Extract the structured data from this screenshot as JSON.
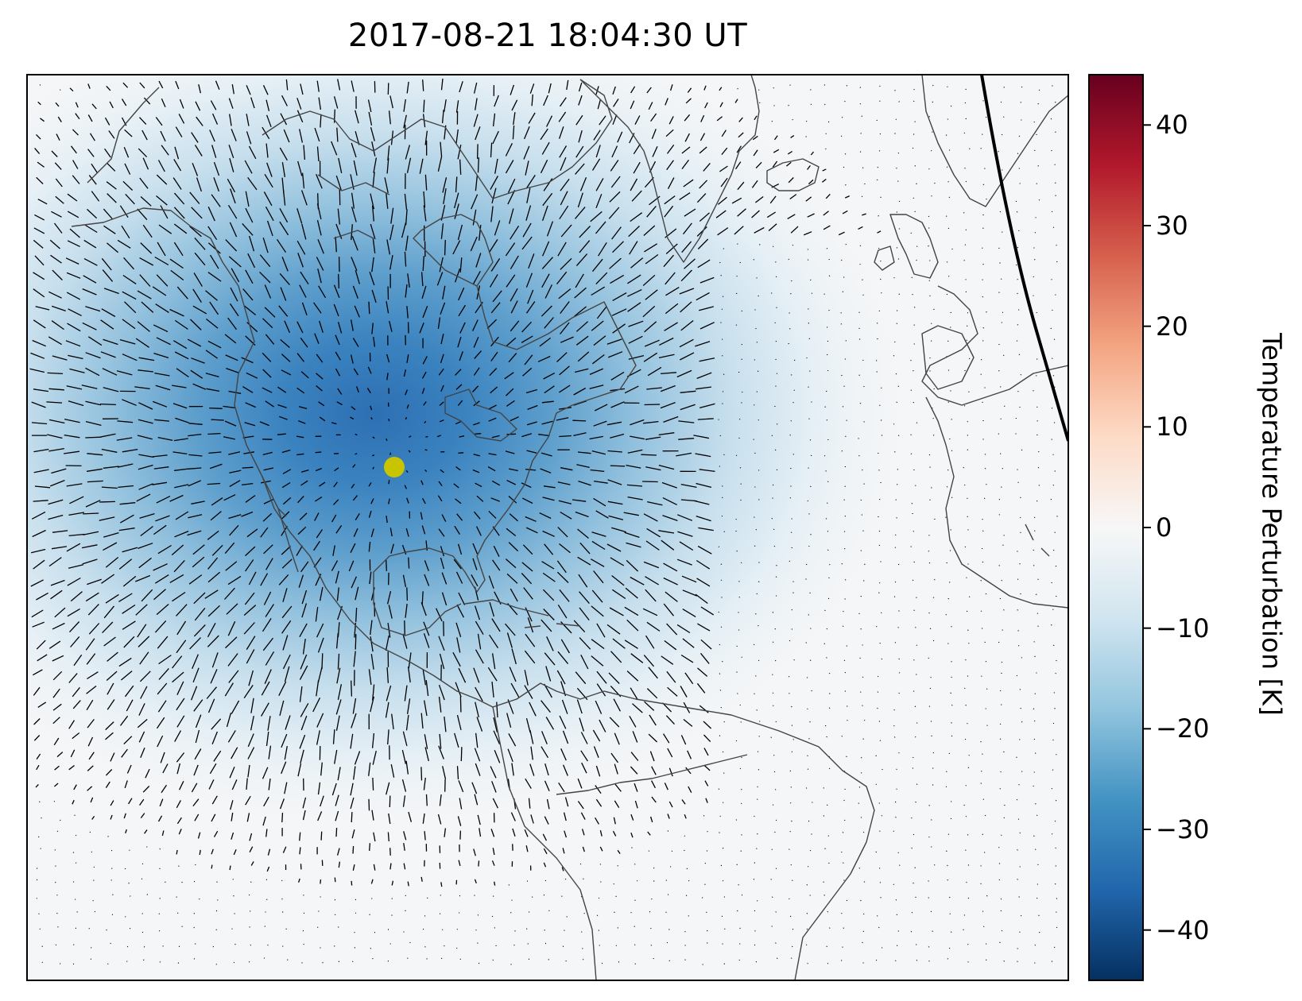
{
  "title": "2017-08-21 18:04:30 UT",
  "colorbar": {
    "label": "Temperature Perturbation [K]",
    "colormap": "RdBu_r",
    "range": [
      -45,
      45
    ],
    "ticks": [
      {
        "value": 40,
        "label": "40"
      },
      {
        "value": 30,
        "label": "30"
      },
      {
        "value": 20,
        "label": "20"
      },
      {
        "value": 10,
        "label": "10"
      },
      {
        "value": 0,
        "label": "0"
      },
      {
        "value": -10,
        "label": "−10"
      },
      {
        "value": -20,
        "label": "−20"
      },
      {
        "value": -30,
        "label": "−30"
      },
      {
        "value": -40,
        "label": "−40"
      }
    ]
  },
  "map": {
    "projection": "orthographic-like, North Atlantic / Americas view",
    "field": "temperature perturbation",
    "min_value": -42,
    "marker": {
      "name": "eclipse-totality-point",
      "color": "#c9c400"
    },
    "terminator_line_color": "#000000",
    "coastline_color": "#444444",
    "wind_vectors_color": "#000000"
  }
}
